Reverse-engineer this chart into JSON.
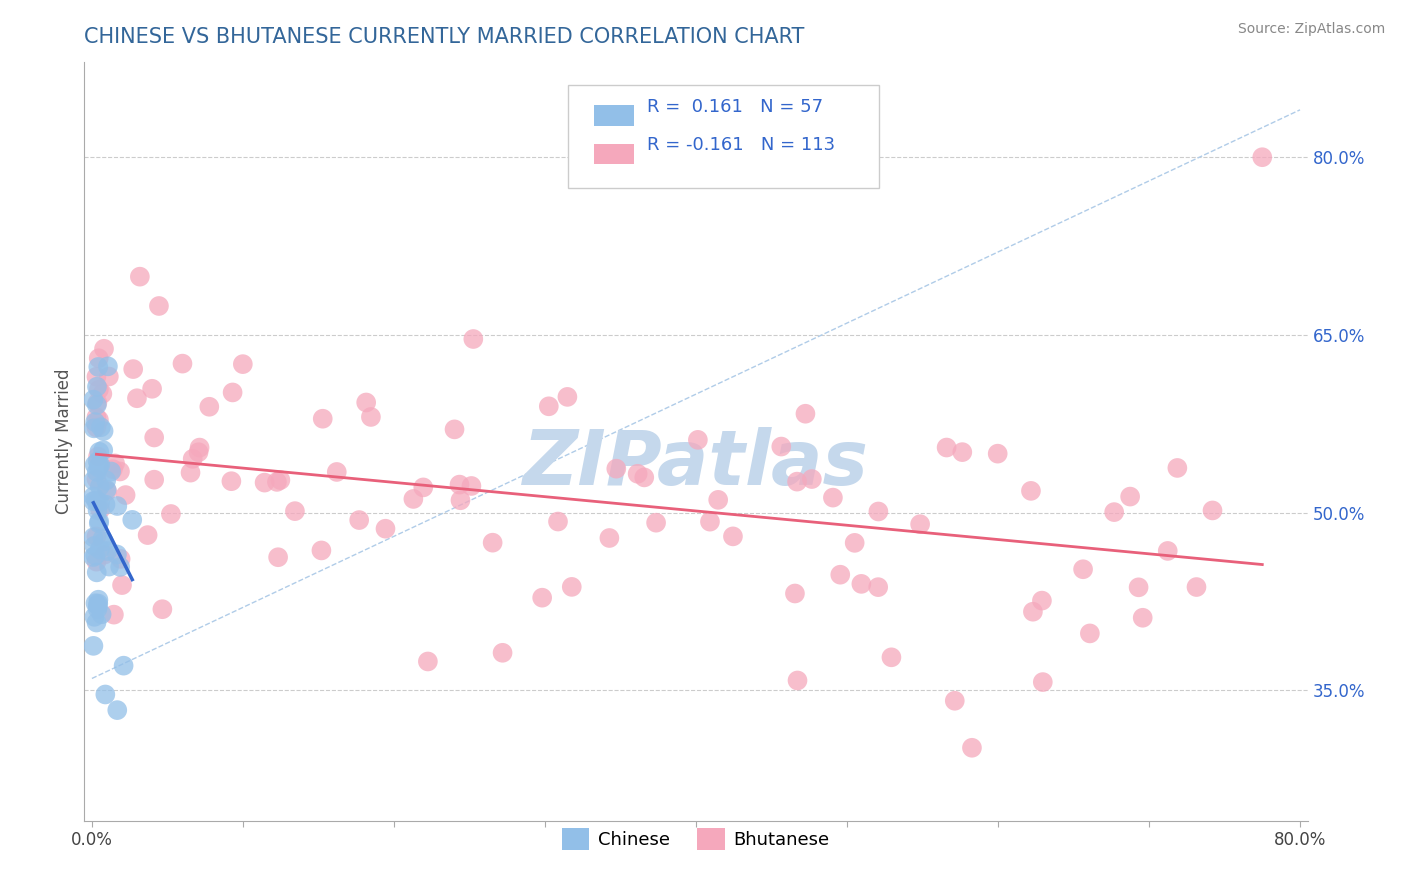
{
  "title": "CHINESE VS BHUTANESE CURRENTLY MARRIED CORRELATION CHART",
  "source": "Source: ZipAtlas.com",
  "xlabel": "",
  "ylabel": "Currently Married",
  "xlim": [
    -0.005,
    0.805
  ],
  "ylim": [
    0.24,
    0.88
  ],
  "ytick_positions": [
    0.35,
    0.5,
    0.65,
    0.8
  ],
  "ytick_labels": [
    "35.0%",
    "50.0%",
    "65.0%",
    "80.0%"
  ],
  "chinese_color": "#92bfe8",
  "bhutanese_color": "#f5a8bc",
  "chinese_line_color": "#3366cc",
  "bhutanese_line_color": "#e8607a",
  "diagonal_color": "#b0cce8",
  "background_color": "#ffffff",
  "grid_color": "#cccccc",
  "chinese_R": 0.161,
  "chinese_N": 57,
  "bhutanese_R": -0.161,
  "bhutanese_N": 113,
  "watermark": "ZIPatlas",
  "watermark_color": "#c5d8ec",
  "title_color": "#336699",
  "legend_color": "#3366cc",
  "dot_size": 200
}
